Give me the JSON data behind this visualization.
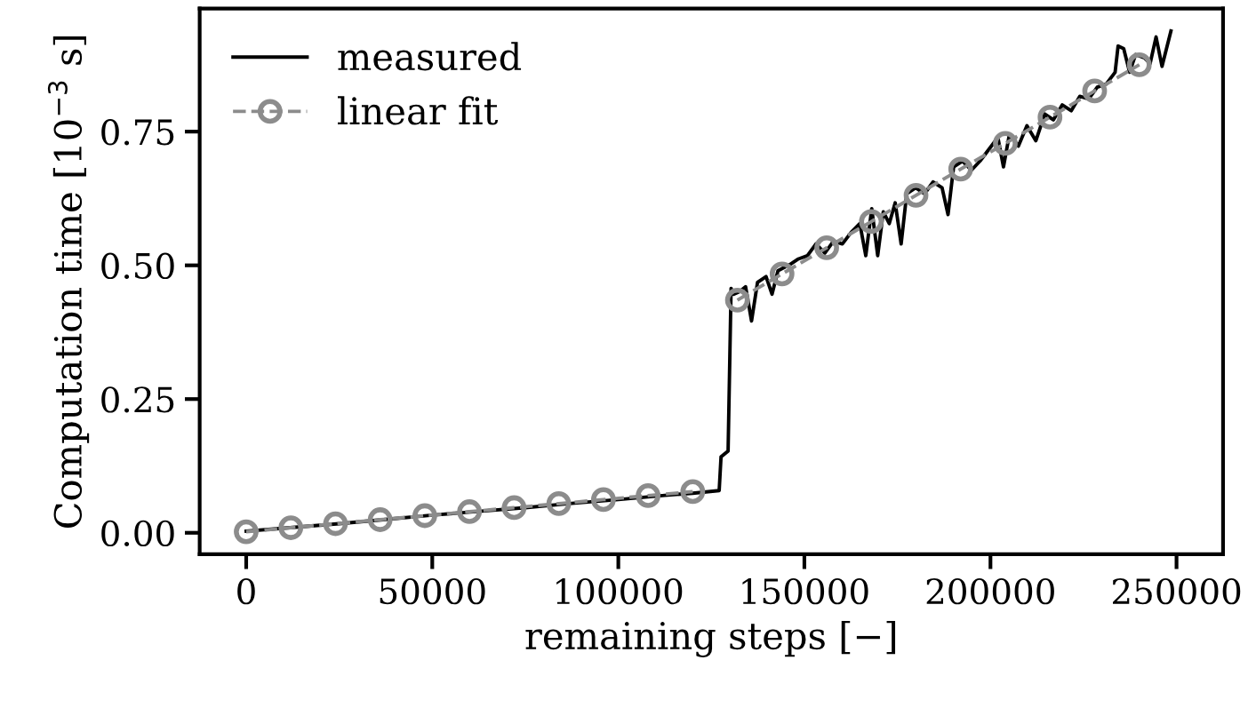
{
  "chart_data": {
    "type": "line",
    "xlabel": "remaining steps [−]",
    "ylabel": "Computation time [10$^{−3}$ s]",
    "xlim": [
      -12500,
      262500
    ],
    "ylim": [
      -0.04,
      0.98
    ],
    "xticks": [
      0,
      50000,
      100000,
      150000,
      200000,
      250000
    ],
    "yticks": [
      {
        "value": 0,
        "label": "0.00"
      },
      {
        "value": 0.25,
        "label": "0.25"
      },
      {
        "value": 0.5,
        "label": "0.50"
      },
      {
        "value": 0.75,
        "label": "0.75"
      }
    ],
    "grid": false,
    "legend": "top left",
    "series": [
      {
        "name": "measured",
        "color": "#000000",
        "line_style": "solid",
        "marker": "none",
        "x": [
          0,
          12500,
          25000,
          37500,
          50000,
          62500,
          75000,
          87500,
          100000,
          112500,
          120000,
          127100,
          127600,
          129500,
          130300,
          131000,
          132600,
          134200,
          135800,
          137400,
          139700,
          141300,
          142900,
          146000,
          148400,
          150800,
          153100,
          155500,
          157800,
          160200,
          162600,
          164900,
          166500,
          168100,
          169700,
          171200,
          172800,
          174400,
          176000,
          177500,
          179900,
          182300,
          184600,
          187000,
          188600,
          190100,
          192500,
          194900,
          197200,
          199600,
          202000,
          203500,
          205100,
          207500,
          209800,
          212200,
          214600,
          216900,
          219300,
          221700,
          224000,
          226400,
          228700,
          231100,
          233500,
          234300,
          235800,
          237400,
          239000,
          241400,
          242900,
          244500,
          246100,
          248500
        ],
        "values": [
          0.003,
          0.01,
          0.017,
          0.025,
          0.033,
          0.04,
          0.047,
          0.055,
          0.062,
          0.07,
          0.074,
          0.079,
          0.142,
          0.153,
          0.457,
          0.446,
          0.451,
          0.46,
          0.396,
          0.468,
          0.479,
          0.446,
          0.49,
          0.501,
          0.512,
          0.518,
          0.54,
          0.523,
          0.545,
          0.54,
          0.562,
          0.578,
          0.518,
          0.606,
          0.518,
          0.6,
          0.578,
          0.617,
          0.54,
          0.634,
          0.645,
          0.634,
          0.656,
          0.645,
          0.595,
          0.684,
          0.695,
          0.678,
          0.695,
          0.717,
          0.739,
          0.684,
          0.745,
          0.723,
          0.761,
          0.733,
          0.783,
          0.772,
          0.8,
          0.789,
          0.816,
          0.811,
          0.833,
          0.839,
          0.861,
          0.91,
          0.905,
          0.861,
          0.894,
          0.888,
          0.877,
          0.927,
          0.872,
          0.938
        ]
      },
      {
        "name": "linear fit",
        "color": "#8c8c8c",
        "line_style": "dashed",
        "marker": "circle",
        "x": [
          0,
          12000,
          24000,
          36000,
          48000,
          60000,
          72000,
          84000,
          96000,
          108000,
          120000,
          null,
          132000,
          144000,
          156000,
          168000,
          180000,
          192000,
          204000,
          216000,
          228000,
          240000
        ],
        "values": [
          0.002,
          0.0095,
          0.017,
          0.0245,
          0.032,
          0.0395,
          0.047,
          0.0545,
          0.062,
          0.0695,
          0.077,
          null,
          0.435,
          0.484,
          0.533,
          0.582,
          0.631,
          0.68,
          0.728,
          0.777,
          0.826,
          0.875
        ]
      }
    ]
  }
}
